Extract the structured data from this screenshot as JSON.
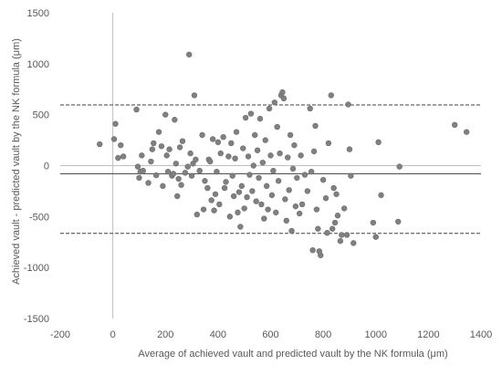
{
  "chart_data": {
    "type": "scatter",
    "title": "",
    "xlabel": "Average of achieved vault and predicted vault by the NK formula (μm)",
    "ylabel": "Achieved vault - predicted vault by the NK formula (μm)",
    "xlim": [
      -200,
      1400
    ],
    "ylim": [
      -1500,
      1500
    ],
    "xticks": [
      -200,
      0,
      200,
      400,
      600,
      800,
      1000,
      1200,
      1400
    ],
    "yticks": [
      -1500,
      -1000,
      -500,
      0,
      500,
      1000,
      1500
    ],
    "grid": false,
    "legend": "none",
    "reference_lines": [
      {
        "style": "solid",
        "y": -80
      },
      {
        "style": "dashed",
        "y": 595
      },
      {
        "style": "dashed",
        "y": -665
      }
    ],
    "colors": {
      "points": "#808080",
      "point_stroke": "#6e6e6e",
      "lines": "#404040",
      "axis": "#bfbfbf",
      "text": "#595959"
    },
    "points": [
      [
        -50,
        210
      ],
      [
        5,
        260
      ],
      [
        10,
        410
      ],
      [
        20,
        75
      ],
      [
        30,
        200
      ],
      [
        40,
        90
      ],
      [
        90,
        550
      ],
      [
        95,
        -10
      ],
      [
        100,
        -120
      ],
      [
        105,
        -60
      ],
      [
        110,
        100
      ],
      [
        115,
        -50
      ],
      [
        135,
        -170
      ],
      [
        145,
        40
      ],
      [
        150,
        160
      ],
      [
        155,
        220
      ],
      [
        165,
        -95
      ],
      [
        175,
        330
      ],
      [
        185,
        190
      ],
      [
        190,
        -200
      ],
      [
        200,
        500
      ],
      [
        205,
        100
      ],
      [
        210,
        -60
      ],
      [
        215,
        160
      ],
      [
        225,
        -100
      ],
      [
        230,
        -80
      ],
      [
        235,
        450
      ],
      [
        240,
        20
      ],
      [
        245,
        -300
      ],
      [
        250,
        -130
      ],
      [
        255,
        180
      ],
      [
        260,
        -190
      ],
      [
        265,
        240
      ],
      [
        275,
        -70
      ],
      [
        285,
        -10
      ],
      [
        290,
        1090
      ],
      [
        295,
        120
      ],
      [
        300,
        -100
      ],
      [
        305,
        20
      ],
      [
        310,
        690
      ],
      [
        315,
        60
      ],
      [
        320,
        -480
      ],
      [
        330,
        -50
      ],
      [
        340,
        300
      ],
      [
        345,
        -430
      ],
      [
        350,
        -150
      ],
      [
        360,
        -220
      ],
      [
        365,
        60
      ],
      [
        370,
        40
      ],
      [
        375,
        -340
      ],
      [
        380,
        260
      ],
      [
        385,
        -440
      ],
      [
        390,
        -280
      ],
      [
        395,
        -60
      ],
      [
        400,
        230
      ],
      [
        405,
        -380
      ],
      [
        410,
        120
      ],
      [
        420,
        280
      ],
      [
        425,
        -220
      ],
      [
        430,
        -160
      ],
      [
        440,
        90
      ],
      [
        445,
        -500
      ],
      [
        450,
        220
      ],
      [
        455,
        -100
      ],
      [
        460,
        -300
      ],
      [
        465,
        70
      ],
      [
        470,
        330
      ],
      [
        475,
        -460
      ],
      [
        480,
        -260
      ],
      [
        485,
        -600
      ],
      [
        490,
        -200
      ],
      [
        495,
        170
      ],
      [
        500,
        -420
      ],
      [
        505,
        470
      ],
      [
        510,
        -310
      ],
      [
        515,
        90
      ],
      [
        520,
        -90
      ],
      [
        525,
        510
      ],
      [
        530,
        -250
      ],
      [
        535,
        0
      ],
      [
        540,
        300
      ],
      [
        545,
        -350
      ],
      [
        550,
        150
      ],
      [
        555,
        -120
      ],
      [
        560,
        460
      ],
      [
        565,
        -380
      ],
      [
        570,
        30
      ],
      [
        575,
        -520
      ],
      [
        580,
        250
      ],
      [
        585,
        -200
      ],
      [
        590,
        -430
      ],
      [
        595,
        560
      ],
      [
        600,
        100
      ],
      [
        605,
        -290
      ],
      [
        610,
        -50
      ],
      [
        615,
        620
      ],
      [
        620,
        -460
      ],
      [
        625,
        380
      ],
      [
        630,
        -150
      ],
      [
        635,
        120
      ],
      [
        640,
        690
      ],
      [
        645,
        720
      ],
      [
        650,
        660
      ],
      [
        655,
        -330
      ],
      [
        660,
        -540
      ],
      [
        665,
        80
      ],
      [
        670,
        -240
      ],
      [
        675,
        300
      ],
      [
        680,
        -640
      ],
      [
        685,
        -30
      ],
      [
        690,
        200
      ],
      [
        695,
        -400
      ],
      [
        700,
        -120
      ],
      [
        710,
        -470
      ],
      [
        715,
        100
      ],
      [
        720,
        -380
      ],
      [
        730,
        -90
      ],
      [
        740,
        -250
      ],
      [
        750,
        560
      ],
      [
        755,
        -60
      ],
      [
        760,
        -830
      ],
      [
        765,
        140
      ],
      [
        770,
        390
      ],
      [
        775,
        -430
      ],
      [
        780,
        -620
      ],
      [
        785,
        -840
      ],
      [
        790,
        -880
      ],
      [
        800,
        -140
      ],
      [
        810,
        -320
      ],
      [
        815,
        -660
      ],
      [
        820,
        220
      ],
      [
        830,
        690
      ],
      [
        835,
        -620
      ],
      [
        840,
        -220
      ],
      [
        845,
        -560
      ],
      [
        850,
        -280
      ],
      [
        855,
        -490
      ],
      [
        865,
        -740
      ],
      [
        870,
        -680
      ],
      [
        880,
        -420
      ],
      [
        890,
        -680
      ],
      [
        895,
        600
      ],
      [
        900,
        160
      ],
      [
        905,
        -100
      ],
      [
        915,
        -760
      ],
      [
        990,
        -560
      ],
      [
        1000,
        -700
      ],
      [
        1010,
        230
      ],
      [
        1020,
        -290
      ],
      [
        1085,
        -550
      ],
      [
        1090,
        -10
      ],
      [
        1300,
        400
      ],
      [
        1345,
        330
      ]
    ]
  }
}
